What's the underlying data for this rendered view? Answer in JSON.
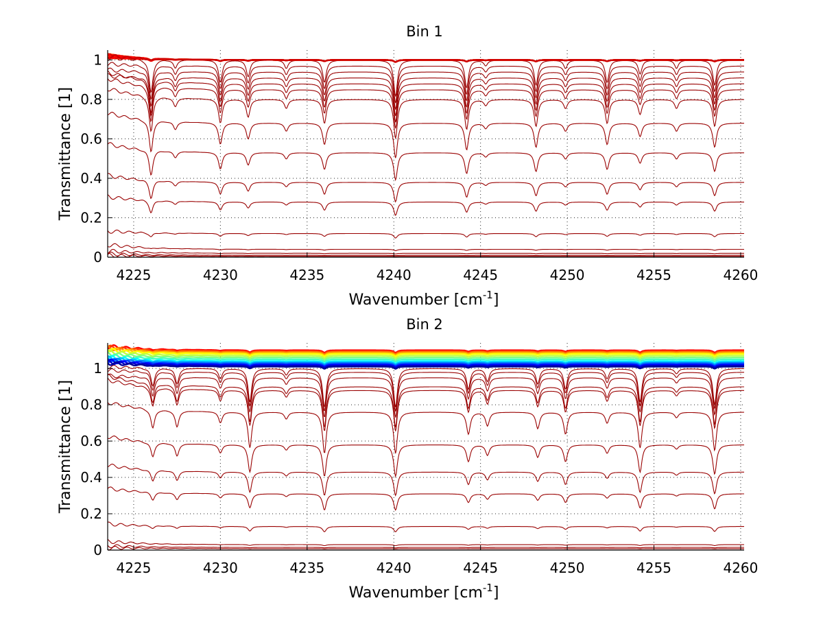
{
  "chart_data": [
    {
      "type": "line",
      "title": "Bin 1",
      "xlabel": "Wavenumber [cm",
      "xlabel_sup": "-1",
      "xlabel_end": "]",
      "ylabel": "Transmittance [1]",
      "xlim": [
        4223.5,
        4260.2
      ],
      "ylim": [
        0,
        1.05
      ],
      "xticks": [
        4225,
        4230,
        4235,
        4240,
        4245,
        4250,
        4255,
        4260
      ],
      "yticks": [
        0,
        0.2,
        0.4,
        0.6,
        0.8,
        1
      ],
      "ytick_labels": [
        "0",
        "0.2",
        "0.4",
        "0.6",
        "0.8",
        "1"
      ],
      "grid": true,
      "colormap": "jet (red → blue)",
      "absorption_lines": [
        {
          "x": 4226.0,
          "depth": 0.24
        },
        {
          "x": 4227.4,
          "depth": 0.06
        },
        {
          "x": 4230.0,
          "depth": 0.16
        },
        {
          "x": 4231.6,
          "depth": 0.12
        },
        {
          "x": 4233.8,
          "depth": 0.06
        },
        {
          "x": 4236.0,
          "depth": 0.16
        },
        {
          "x": 4240.1,
          "depth": 0.26
        },
        {
          "x": 4244.2,
          "depth": 0.2
        },
        {
          "x": 4245.3,
          "depth": 0.04
        },
        {
          "x": 4248.2,
          "depth": 0.18
        },
        {
          "x": 4249.9,
          "depth": 0.06
        },
        {
          "x": 4252.3,
          "depth": 0.16
        },
        {
          "x": 4254.2,
          "depth": 0.1
        },
        {
          "x": 4256.3,
          "depth": 0.06
        },
        {
          "x": 4258.5,
          "depth": 0.18
        }
      ],
      "series_levels": [
        1.0,
        0.97,
        0.94,
        0.91,
        0.88,
        0.85,
        0.8,
        0.68,
        0.53,
        0.38,
        0.28,
        0.12,
        0.04,
        0.02,
        0.01,
        0.005
      ],
      "saturated_levels": [
        1.0,
        1.0,
        1.0,
        1.0,
        1.0,
        1.0,
        1.0,
        1.0
      ],
      "saturated_colors": [
        "#ff8c00",
        "#ffb000",
        "#ff6a00",
        "#ff4000",
        "#ff2000",
        "#e00000",
        "#ff0000",
        "#cc0000"
      ]
    },
    {
      "type": "line",
      "title": "Bin 2",
      "xlabel": "Wavenumber [cm",
      "xlabel_sup": "-1",
      "xlabel_end": "]",
      "ylabel": "Transmittance [1]",
      "xlim": [
        4223.5,
        4260.2
      ],
      "ylim": [
        0,
        1.14
      ],
      "xticks": [
        4225,
        4230,
        4235,
        4240,
        4245,
        4250,
        4255,
        4260
      ],
      "yticks": [
        0,
        0.2,
        0.4,
        0.6,
        0.8,
        1
      ],
      "ytick_labels": [
        "0",
        "0.2",
        "0.4",
        "0.6",
        "0.8",
        "1"
      ],
      "grid": true,
      "colormap": "jet (red → blue)",
      "absorption_lines": [
        {
          "x": 4226.1,
          "depth": 0.14
        },
        {
          "x": 4227.5,
          "depth": 0.12
        },
        {
          "x": 4230.0,
          "depth": 0.08
        },
        {
          "x": 4231.7,
          "depth": 0.26
        },
        {
          "x": 4233.8,
          "depth": 0.05
        },
        {
          "x": 4236.0,
          "depth": 0.3
        },
        {
          "x": 4240.1,
          "depth": 0.3
        },
        {
          "x": 4244.3,
          "depth": 0.16
        },
        {
          "x": 4245.4,
          "depth": 0.1
        },
        {
          "x": 4248.3,
          "depth": 0.12
        },
        {
          "x": 4249.9,
          "depth": 0.16
        },
        {
          "x": 4252.3,
          "depth": 0.08
        },
        {
          "x": 4254.2,
          "depth": 0.26
        },
        {
          "x": 4256.3,
          "depth": 0.04
        },
        {
          "x": 4258.5,
          "depth": 0.28
        }
      ],
      "series_levels": [
        1.0,
        0.98,
        0.95,
        0.9,
        0.88,
        0.76,
        0.58,
        0.43,
        0.31,
        0.13,
        0.03,
        0.015,
        0.008
      ],
      "saturated_levels": [
        1.1,
        1.095,
        1.09,
        1.085,
        1.08,
        1.07,
        1.06,
        1.05,
        1.04,
        1.035,
        1.03,
        1.025,
        1.02,
        1.015,
        1.01
      ],
      "saturated_colors": [
        "#ff0000",
        "#ff4000",
        "#ff8000",
        "#ffbf00",
        "#ffff00",
        "#bfff40",
        "#80ff80",
        "#40ffbf",
        "#00ffff",
        "#00bfff",
        "#0080ff",
        "#0040ff",
        "#0000ff",
        "#0000cc",
        "#000099"
      ]
    }
  ],
  "colors": {
    "low_series": "#990000",
    "axis": "#000000"
  }
}
